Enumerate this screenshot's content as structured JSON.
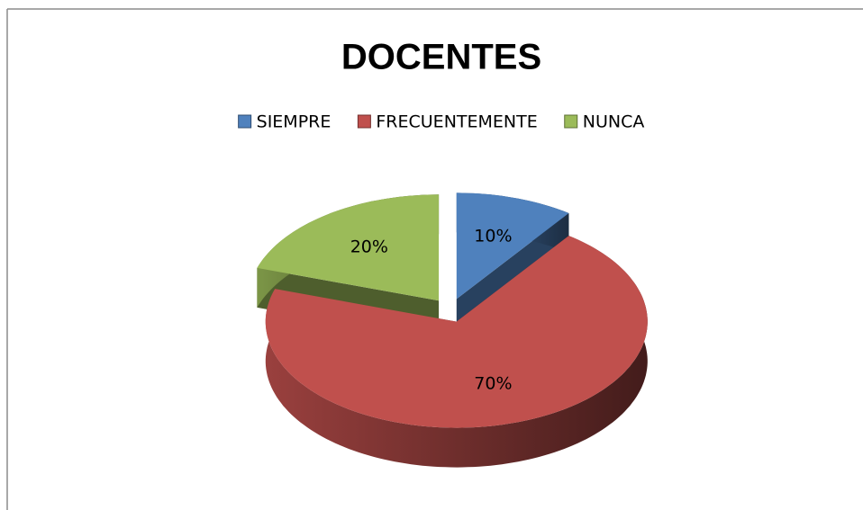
{
  "chart_data": {
    "type": "pie",
    "title": "DOCENTES",
    "categories": [
      "SIEMPRE",
      "FRECUENTEMENTE",
      "NUNCA"
    ],
    "values": [
      10,
      70,
      20
    ],
    "value_labels": [
      "10%",
      "70%",
      "20%"
    ],
    "colors": [
      "#4f81bd",
      "#c0504d",
      "#9bbb59"
    ],
    "legend": "top"
  }
}
